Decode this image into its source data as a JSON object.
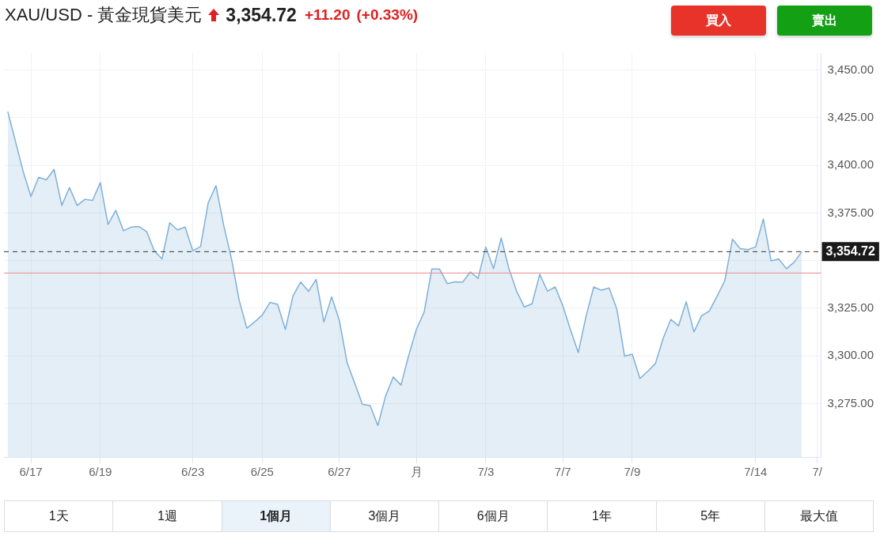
{
  "chart_data": {
    "type": "area",
    "title": "XAU/USD - 黃金現貨美元",
    "annotations": [
      "3,354.72",
      "+11.20",
      "(+0.33%)",
      "買入",
      "賣出",
      "1天",
      "1週",
      "1個月",
      "3個月",
      "6個月",
      "1年",
      "5年",
      "最大值"
    ],
    "categories": [
      null,
      null,
      null,
      "6/17",
      null,
      null,
      null,
      null,
      null,
      null,
      null,
      null,
      "6/19",
      null,
      null,
      null,
      null,
      null,
      null,
      null,
      null,
      null,
      null,
      null,
      "6/23",
      null,
      null,
      null,
      null,
      null,
      null,
      null,
      null,
      "6/25",
      null,
      null,
      null,
      null,
      null,
      null,
      null,
      null,
      null,
      "6/27",
      null,
      null,
      null,
      null,
      null,
      null,
      null,
      null,
      null,
      "月",
      null,
      null,
      null,
      null,
      null,
      null,
      null,
      null,
      "7/3",
      null,
      null,
      null,
      null,
      null,
      null,
      null,
      null,
      null,
      "7/7",
      null,
      null,
      null,
      null,
      null,
      null,
      null,
      null,
      "7/9",
      null,
      null,
      null,
      null,
      null,
      null,
      null,
      null,
      null,
      null,
      null,
      null,
      null,
      null,
      null,
      "7/14",
      null,
      null,
      null,
      null,
      null,
      null,
      null,
      "7/"
    ],
    "series": [
      {
        "color": "#7fb0d8",
        "values": [
          3428.2,
          3412.5,
          3396.7,
          3383.7,
          3393.8,
          3392.4,
          3397.9,
          3379.0,
          3388.4,
          3379.0,
          3382.2,
          3381.6,
          3391.0,
          3369.0,
          3376.4,
          3365.7,
          3367.6,
          3367.9,
          3365.3,
          3355.2,
          3350.9,
          3369.9,
          3366.2,
          3367.6,
          3355.2,
          3357.4,
          3380.4,
          3389.4,
          3368.6,
          3351.3,
          3329.4,
          3314.6,
          3317.8,
          3321.4,
          3328.1,
          3327.1,
          3313.9,
          3331.6,
          3338.8,
          3333.9,
          3340.2,
          3317.8,
          3331.0,
          3318.8,
          3296.7,
          3285.7,
          3274.6,
          3274.0,
          3263.5,
          3278.9,
          3289.0,
          3284.7,
          3300.2,
          3314.0,
          3322.9,
          3345.6,
          3345.6,
          3338.0,
          3338.9,
          3338.7,
          3344.1,
          3340.7,
          3357.2,
          3345.8,
          3361.9,
          3345.8,
          3334.0,
          3325.7,
          3327.4,
          3342.8,
          3334.0,
          3336.2,
          3326.3,
          3313.6,
          3301.8,
          3320.7,
          3336.2,
          3334.5,
          3335.7,
          3324.6,
          3299.9,
          3300.9,
          3288.2,
          3291.9,
          3296.0,
          3309.1,
          3319.2,
          3315.8,
          3328.4,
          3312.6,
          3321.1,
          3323.6,
          3331.4,
          3339.4,
          3361.2,
          3356.3,
          3355.8,
          3357.2,
          3371.9,
          3349.9,
          3350.9,
          3345.8,
          3349.2,
          3354.7,
          null,
          null
        ]
      }
    ],
    "ylim": [
      3247,
      3459
    ],
    "yticks": [
      {
        "value": 3275,
        "label": "3,275.00"
      },
      {
        "value": 3300,
        "label": "3,300.00"
      },
      {
        "value": 3325,
        "label": "3,325.00"
      },
      {
        "value": 3350,
        "label": null
      },
      {
        "value": 3375,
        "label": "3,375.00"
      },
      {
        "value": 3400,
        "label": "3,400.00"
      },
      {
        "value": 3425,
        "label": "3,425.00"
      },
      {
        "value": 3450,
        "label": "3,450.00"
      }
    ],
    "ref_lines": [
      {
        "axis": "y",
        "value": 3354.72,
        "label": "3,354.72",
        "color": "#333333",
        "line_style": "dashed"
      },
      {
        "axis": "y",
        "value": 3343.52,
        "color": "#ee8a8a",
        "line_style": "solid"
      }
    ],
    "grid": true,
    "legend": false,
    "marker": "none",
    "line_style": "solid"
  }
}
